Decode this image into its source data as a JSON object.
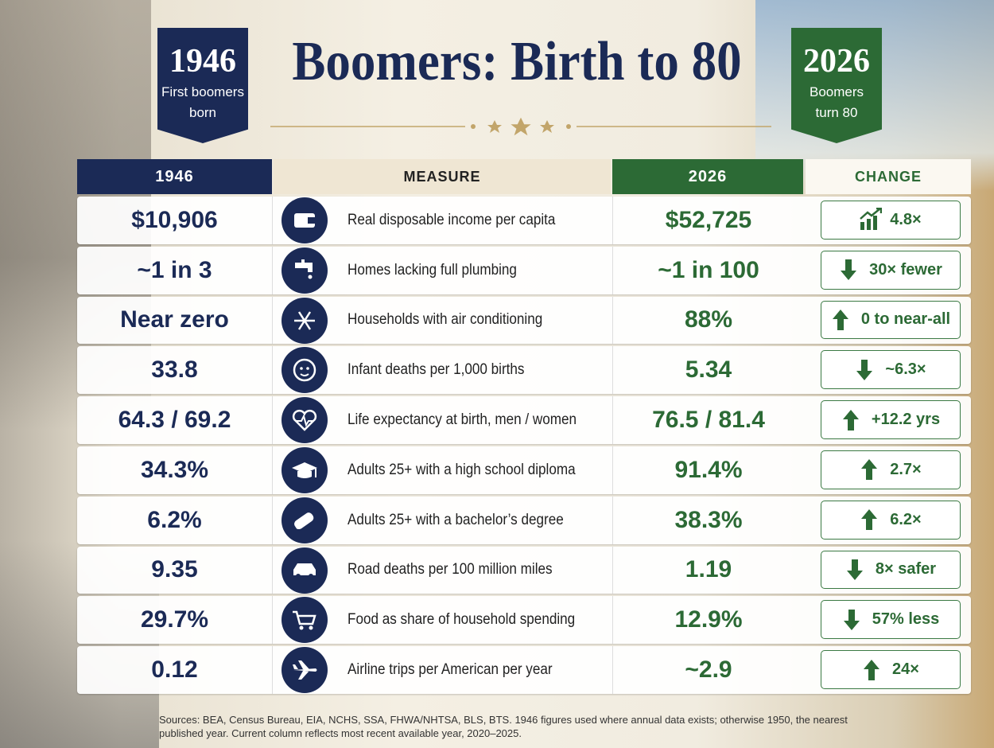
{
  "header": {
    "left_year": "1946",
    "left_caption": [
      "First boomers",
      "born"
    ],
    "title": "Boomers: Birth to 80",
    "right_year": "2026",
    "right_caption": [
      "Boomers",
      "turn 80"
    ]
  },
  "table": {
    "columns": [
      "1946",
      "MEASURE",
      "2026",
      "CHANGE"
    ],
    "rows": [
      [
        "$10,906",
        "Real disposable income per capita",
        "$52,725",
        "4.8×"
      ],
      [
        "~1 in 3",
        "Homes lacking full plumbing",
        "~1 in 100",
        "30× fewer"
      ],
      [
        "Near zero",
        "Households with air conditioning",
        "88%",
        "0 to near-all"
      ],
      [
        "33.8",
        "Infant deaths per 1,000 births",
        "5.34",
        "~6.3×"
      ],
      [
        "64.3 / 69.2",
        "Life expectancy at birth, men / women",
        "76.5 / 81.4",
        "+12.2 yrs"
      ],
      [
        "34.3%",
        "Adults 25+ with a high school diploma",
        "91.4%",
        "2.7×"
      ],
      [
        "6.2%",
        "Adults 25+ with a bachelor’s degree",
        "38.3%",
        "6.2×"
      ],
      [
        "9.35",
        "Road deaths per 100 million miles",
        "1.19",
        "8× safer"
      ],
      [
        "29.7%",
        "Food as share of household spending",
        "12.9%",
        "57% less"
      ],
      [
        "0.12",
        "Airline trips per American per year",
        "~2.9",
        "24×"
      ]
    ]
  },
  "sources": "Sources: BEA, Census Bureau, EIA, NCHS, SSA, FHWA/NHTSA, BLS, BTS. 1946 figures used where annual data exists; otherwise 1950, the nearest published year. Current column reflects most recent available year, 2020–2025."
}
